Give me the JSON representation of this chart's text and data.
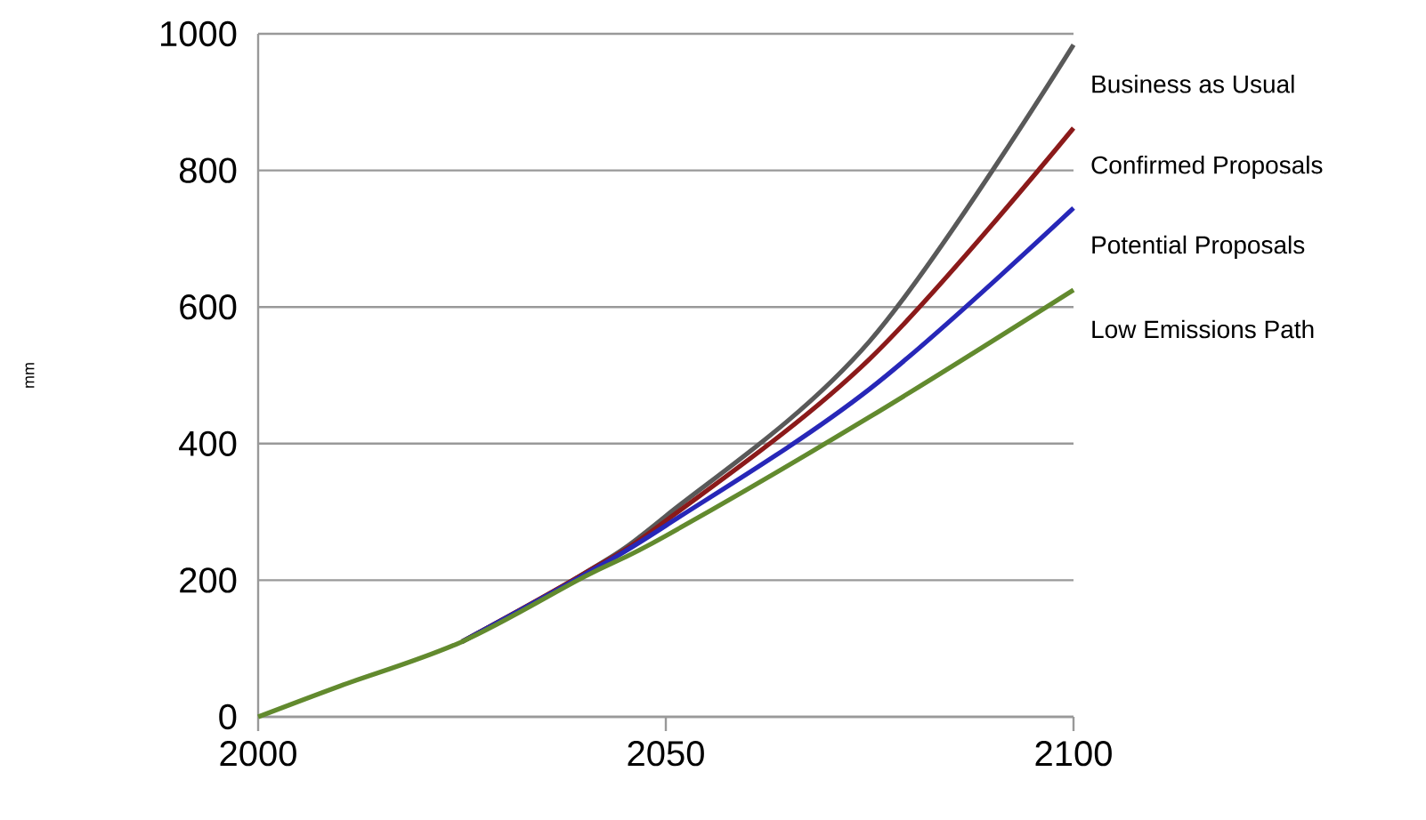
{
  "chart_data": {
    "type": "line",
    "annotations": [
      "mm"
    ],
    "x": [
      2000,
      2010,
      2025,
      2040,
      2050,
      2075,
      2100
    ],
    "series": [
      {
        "name": "Business as Usual",
        "color": "#595959",
        "values": [
          null,
          null,
          110,
          210,
          294,
          550,
          984
        ]
      },
      {
        "name": "Confirmed Proposals",
        "color": "#8b1a1a",
        "values": [
          null,
          null,
          110,
          210,
          287,
          524,
          862
        ]
      },
      {
        "name": "Potential Proposals",
        "color": "#2727b8",
        "values": [
          null,
          null,
          110,
          208,
          280,
          480,
          745
        ]
      },
      {
        "name": "Low Emissions Path",
        "color": "#628a2e",
        "values": [
          0,
          45,
          110,
          205,
          265,
          439,
          625
        ]
      }
    ],
    "xlim": [
      2000,
      2100
    ],
    "xticks": [
      2000,
      2050,
      2100
    ],
    "ylim": [
      0,
      1000
    ],
    "yticks": [
      0,
      200,
      400,
      600,
      800,
      1000
    ],
    "grid": "y",
    "legend": false,
    "marker": "none",
    "line_style": "solid"
  }
}
